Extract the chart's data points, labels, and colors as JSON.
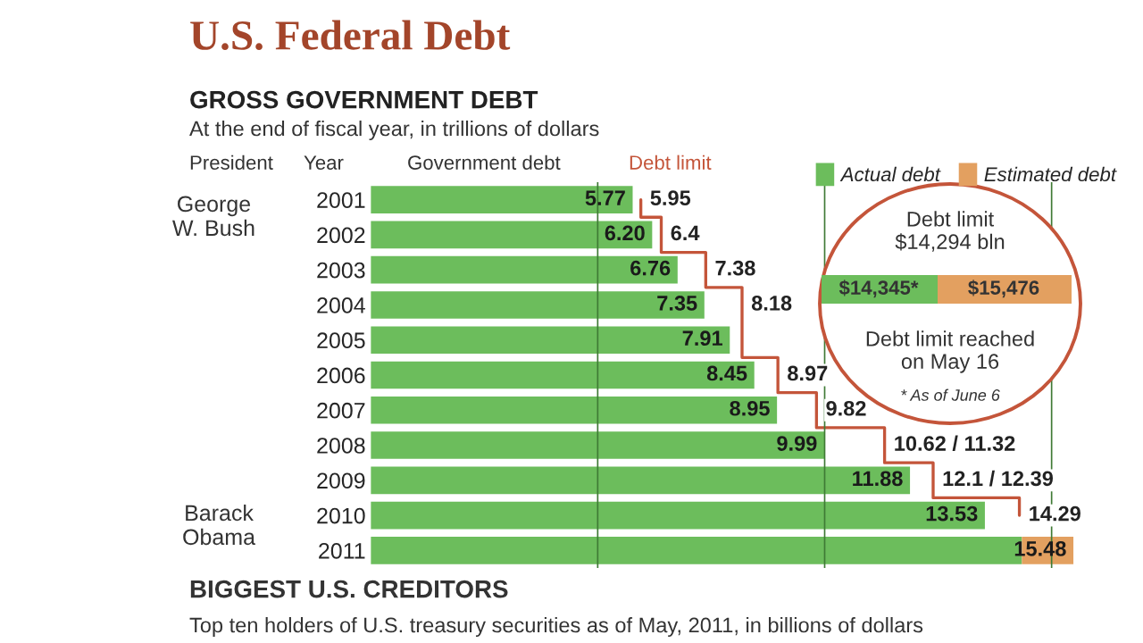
{
  "chart_data": {
    "type": "bar",
    "orientation": "horizontal",
    "stacked": true,
    "title": "U.S. Federal Debt",
    "subtitle": "GROSS GOVERNMENT DEBT",
    "categories": [
      "2001",
      "2002",
      "2003",
      "2004",
      "2005",
      "2006",
      "2007",
      "2008",
      "2009",
      "2010",
      "2011"
    ],
    "series": [
      {
        "name": "Actual debt",
        "color": "#6cbd5c",
        "values": [
          5.77,
          6.2,
          6.76,
          7.35,
          7.91,
          8.45,
          8.95,
          9.99,
          11.88,
          13.53,
          14.345
        ]
      },
      {
        "name": "Estimated debt",
        "color": "#e3a060",
        "values": [
          null,
          null,
          null,
          null,
          null,
          null,
          null,
          null,
          null,
          null,
          1.135
        ]
      },
      {
        "name": "Debt limit",
        "type": "step",
        "color": "#c4553a",
        "values": [
          5.95,
          6.4,
          7.38,
          8.18,
          8.18,
          8.97,
          9.82,
          11.32,
          12.39,
          14.29,
          null
        ],
        "value_labels": [
          "5.95",
          "6.4",
          "7.38",
          "8.18",
          null,
          "8.97",
          "9.82",
          "10.62 / 11.32",
          "12.1 / 12.39",
          "14.29",
          null
        ]
      }
    ],
    "totals": [
      "5.77",
      "6.20",
      "6.76",
      "7.35",
      "7.91",
      "8.45",
      "8.95",
      "9.99",
      "11.88",
      "13.53",
      "15.48"
    ],
    "ref_lines": [
      {
        "axis": "x",
        "value": 5,
        "color": "#3f7a35"
      },
      {
        "axis": "x",
        "value": 10,
        "color": "#3f7a35"
      },
      {
        "axis": "x",
        "value": 15,
        "color": "#3f7a35"
      }
    ],
    "tick_labels": "y",
    "legend": "top right",
    "annotations": [
      "At the end of fiscal year, in trillions of dollars",
      "President",
      "Year",
      "Government debt",
      "George\nW. Bush",
      "Barack\nObama",
      "Debt limit\n$14,294 bln",
      "$14,345*",
      "$15,476",
      "Debt limit reached\non May 16",
      "* As of June 6",
      "BIGGEST U.S. CREDITORS",
      "Top ten holders of U.S. treasury securities as of May, 2011, in billions of dollars"
    ]
  }
}
